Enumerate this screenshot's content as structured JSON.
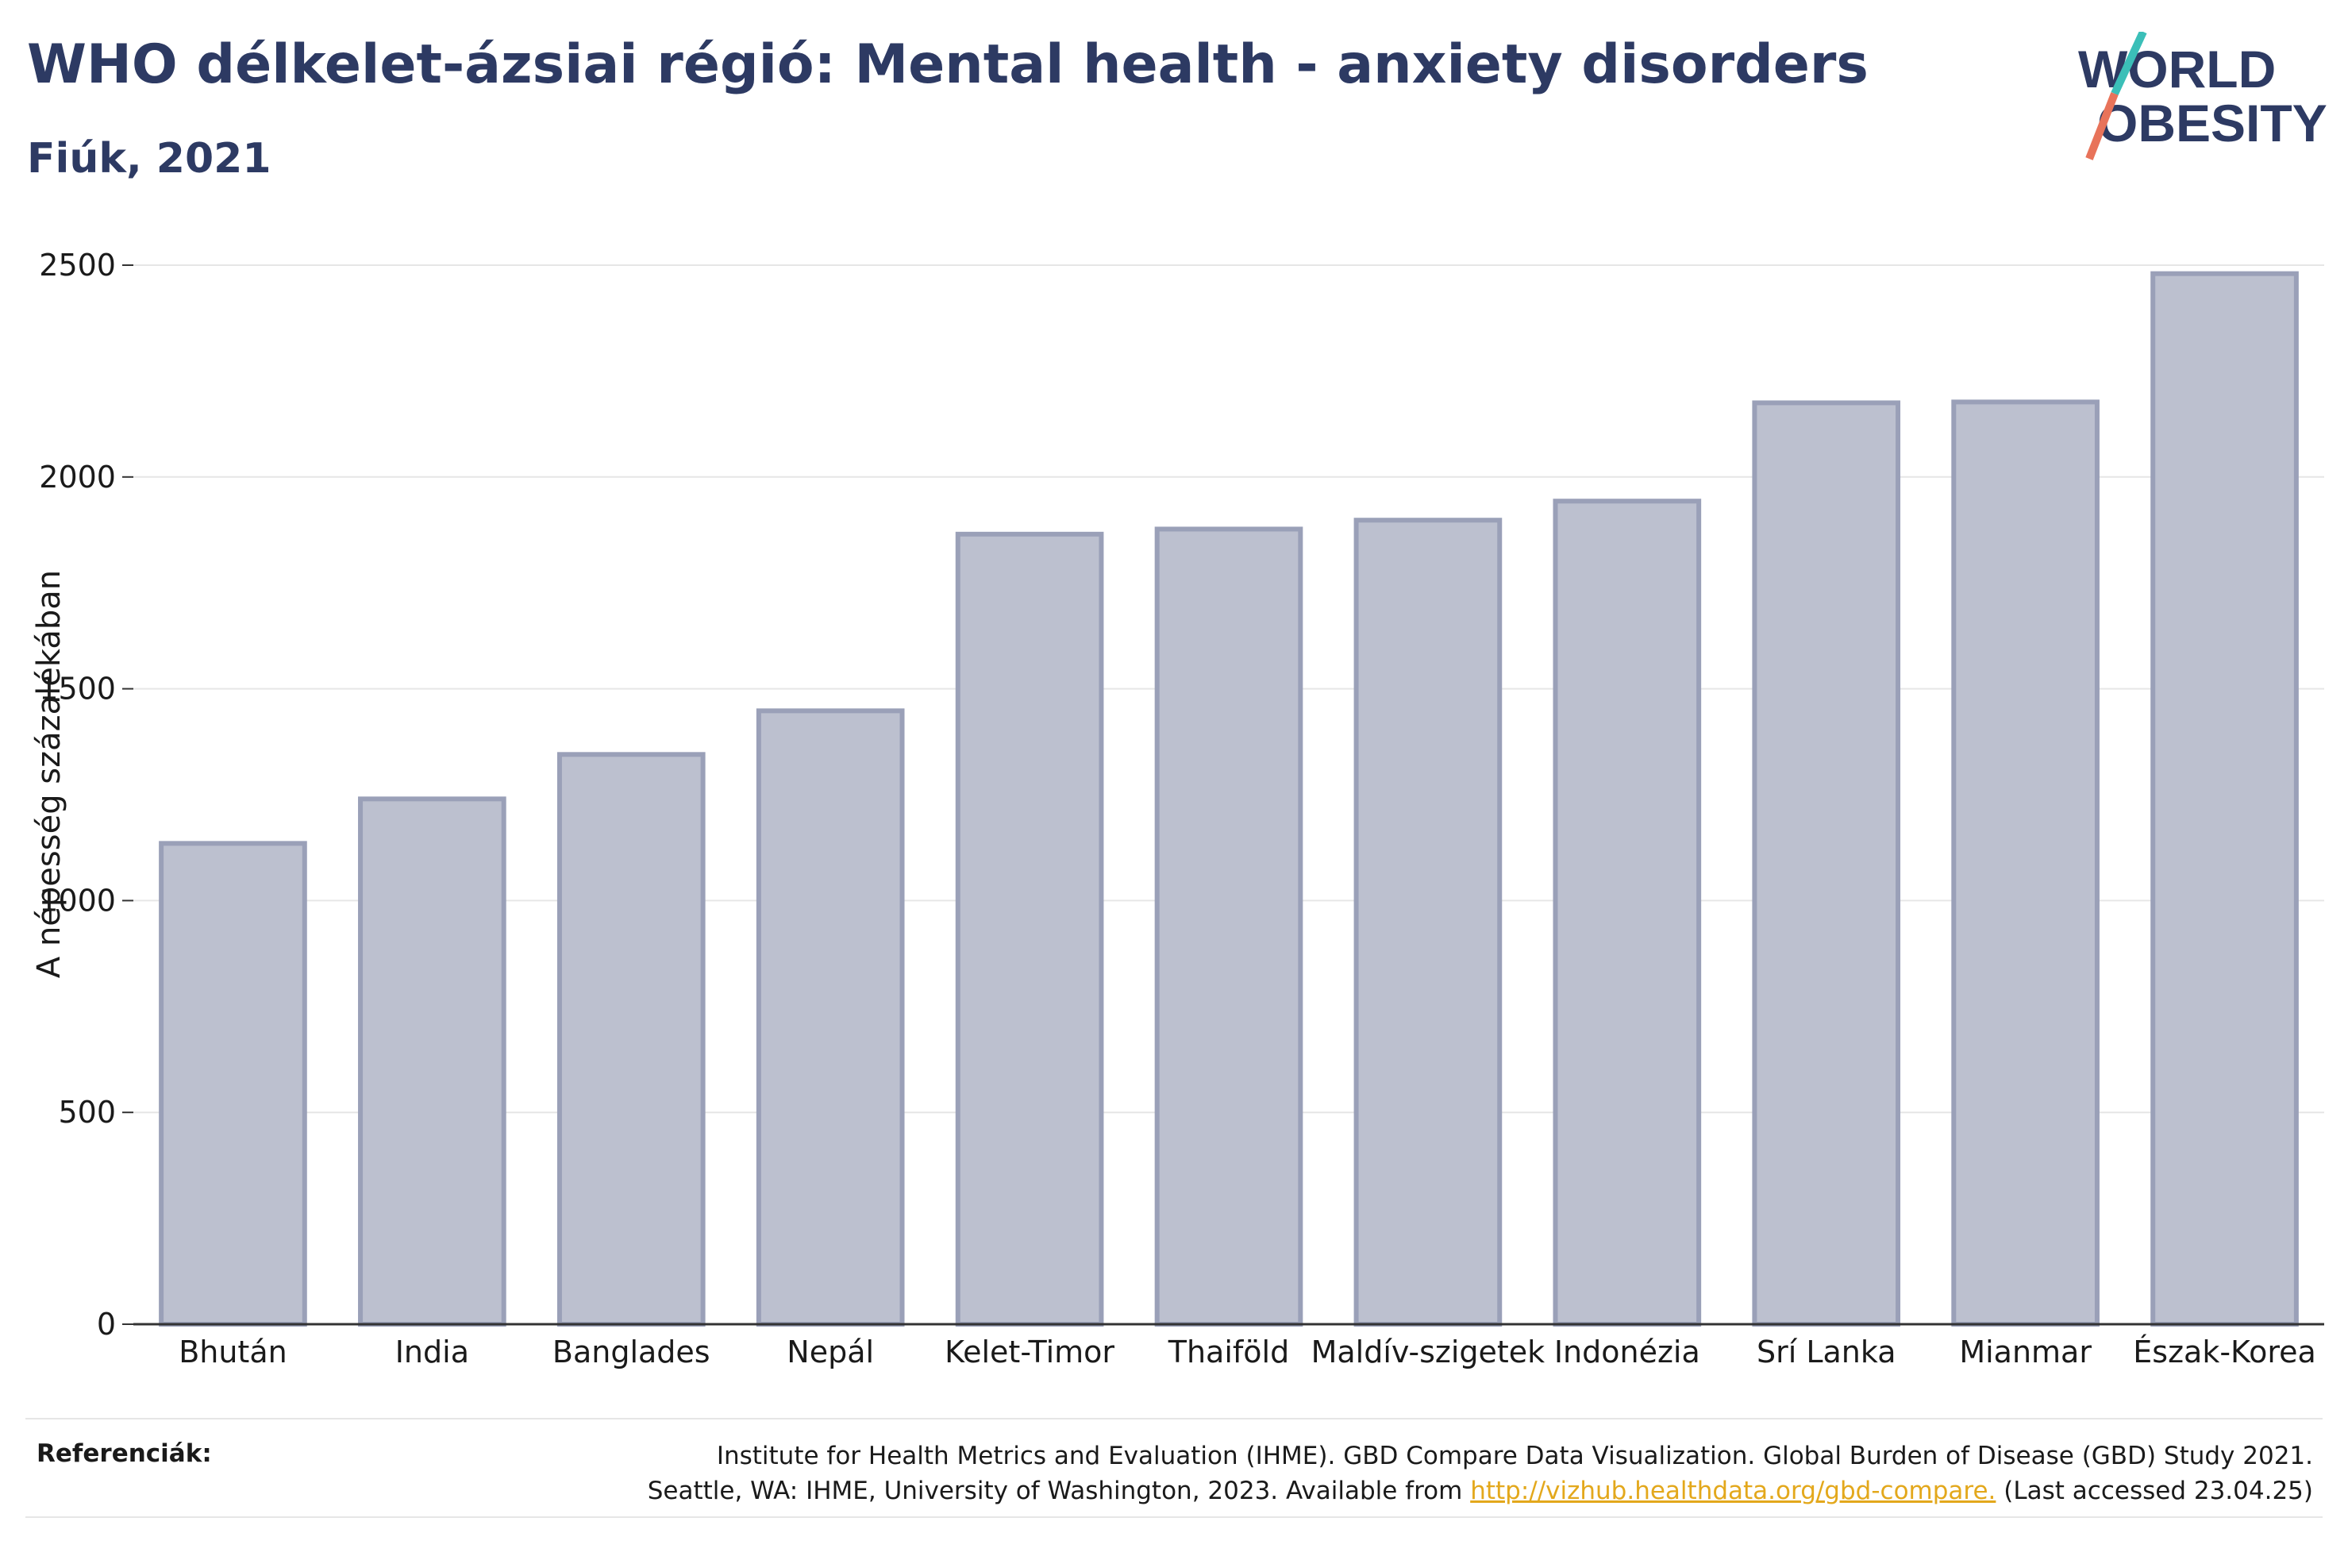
{
  "header": {
    "title": "WHO délkelet-ázsiai régió: Mental health - anxiety disorders",
    "subtitle": "Fiúk, 2021"
  },
  "logo": {
    "line1": "WORLD",
    "line2": "OBESITY",
    "colors": {
      "text": "#2d3a63",
      "slash_top": "#3bbfb8",
      "slash_bottom": "#e8735a"
    }
  },
  "chart_data": {
    "type": "bar",
    "categories": [
      "Bhután",
      "India",
      "Banglades",
      "Nepál",
      "Kelet-Timor",
      "Thaiföld",
      "Maldív-szigetek",
      "Indonézia",
      "Srí Lanka",
      "Mianmar",
      "Észak-Korea"
    ],
    "values": [
      1135,
      1240,
      1345,
      1448,
      1865,
      1877,
      1898,
      1943,
      2175,
      2177,
      2480
    ],
    "ylabel": "A népesség százalékában",
    "ylim": [
      0,
      2600
    ],
    "yticks": [
      0,
      500,
      1000,
      1500,
      2000,
      2500
    ],
    "grid": true,
    "colors": {
      "bar_fill": "#bcc0cf",
      "bar_stroke": "#9aa0b8",
      "grid": "#e6e6e6",
      "axis": "#333333"
    }
  },
  "references": {
    "label": "Referenciák:",
    "line1": "Institute for Health Metrics and Evaluation (IHME). GBD Compare Data Visualization. Global Burden of Disease (GBD) Study 2021.",
    "line2_prefix": "Seattle, WA: IHME, University of Washington, 2023. Available from ",
    "link": "http://vizhub.healthdata.org/gbd-compare.",
    "line2_suffix": " (Last accessed 23.04.25)"
  }
}
